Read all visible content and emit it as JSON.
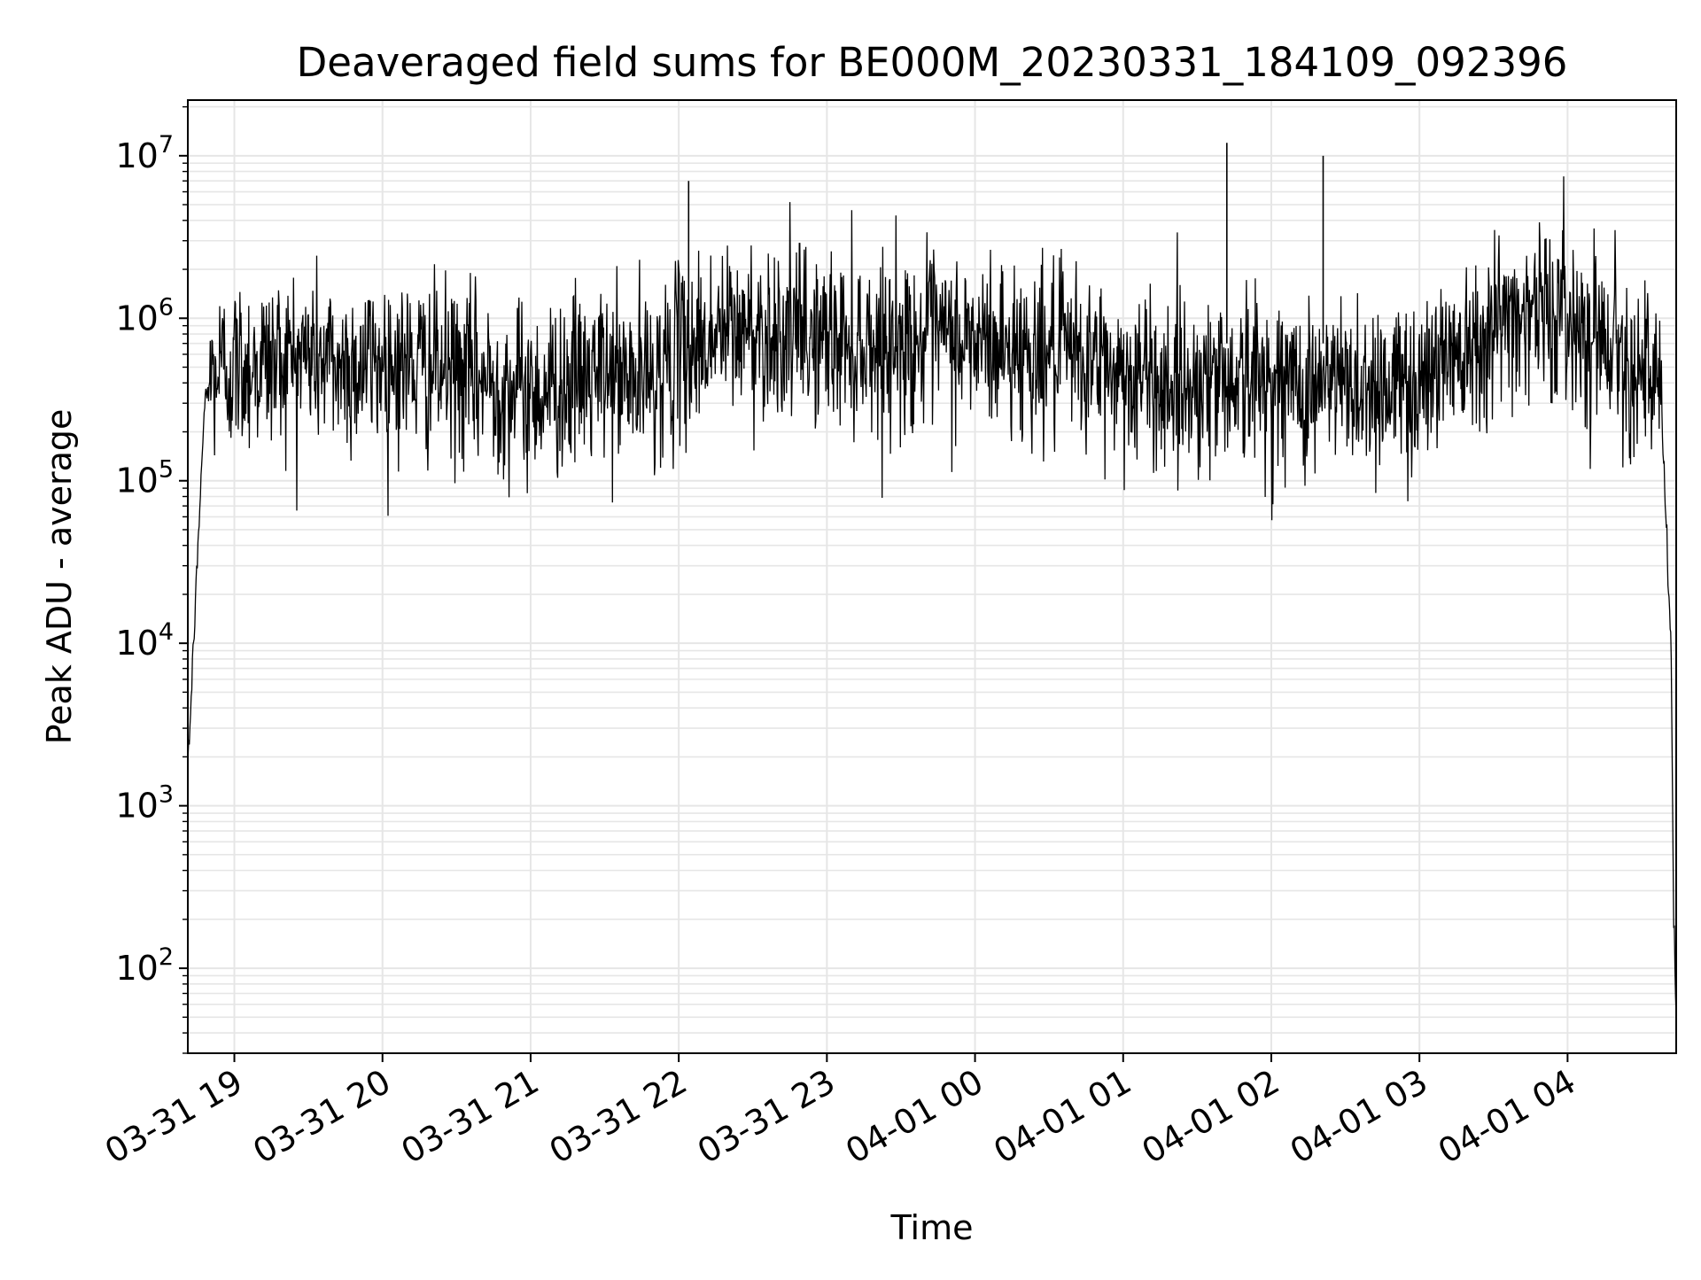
{
  "chart_data": {
    "type": "line",
    "title": "Deaveraged field sums for BE000M_20230331_184109_092396",
    "xlabel": "Time",
    "ylabel": "Peak ADU - average",
    "yscale": "log",
    "ylim": [
      30,
      22000000
    ],
    "xlim": [
      "2023-03-31 18:41:09",
      "2023-04-01 04:44:00"
    ],
    "grid": true,
    "grid_color": "#e6e6e6",
    "line_color": "#000000",
    "x_ticks": [
      {
        "value": "2023-03-31 19:00",
        "label": "03-31 19"
      },
      {
        "value": "2023-03-31 20:00",
        "label": "03-31 20"
      },
      {
        "value": "2023-03-31 21:00",
        "label": "03-31 21"
      },
      {
        "value": "2023-03-31 22:00",
        "label": "03-31 22"
      },
      {
        "value": "2023-03-31 23:00",
        "label": "03-31 23"
      },
      {
        "value": "2023-04-01 00:00",
        "label": "04-01 00"
      },
      {
        "value": "2023-04-01 01:00",
        "label": "04-01 01"
      },
      {
        "value": "2023-04-01 02:00",
        "label": "04-01 02"
      },
      {
        "value": "2023-04-01 03:00",
        "label": "04-01 03"
      },
      {
        "value": "2023-04-01 04:00",
        "label": "04-01 04"
      }
    ],
    "y_ticks": [
      {
        "value": 100,
        "base": "10",
        "exp": "2"
      },
      {
        "value": 1000,
        "base": "10",
        "exp": "3"
      },
      {
        "value": 10000,
        "base": "10",
        "exp": "4"
      },
      {
        "value": 100000,
        "base": "10",
        "exp": "5"
      },
      {
        "value": 1000000,
        "base": "10",
        "exp": "6"
      },
      {
        "value": 10000000,
        "base": "10",
        "exp": "7"
      }
    ],
    "series": [
      {
        "x": [
          "2023-03-31 18:41",
          "2023-03-31 18:42",
          "2023-03-31 18:43",
          "2023-03-31 18:44",
          "2023-03-31 18:45",
          "2023-03-31 18:46",
          "2023-03-31 18:47",
          "2023-03-31 18:48",
          "2023-03-31 18:50",
          "2023-03-31 18:52",
          "2023-03-31 18:55",
          "2023-03-31 19:00",
          "2023-03-31 19:15",
          "2023-03-31 19:30",
          "2023-03-31 19:45",
          "2023-03-31 20:00",
          "2023-03-31 20:15",
          "2023-03-31 20:30",
          "2023-03-31 20:45",
          "2023-03-31 21:00",
          "2023-03-31 21:15",
          "2023-03-31 21:30",
          "2023-03-31 21:45",
          "2023-03-31 22:00",
          "2023-03-31 22:15",
          "2023-03-31 22:30",
          "2023-03-31 22:45",
          "2023-03-31 23:00",
          "2023-03-31 23:15",
          "2023-03-31 23:30",
          "2023-03-31 23:45",
          "2023-04-01 00:00",
          "2023-04-01 00:15",
          "2023-04-01 00:30",
          "2023-04-01 00:45",
          "2023-04-01 01:00",
          "2023-04-01 01:15",
          "2023-04-01 01:30",
          "2023-04-01 01:45",
          "2023-04-01 02:00",
          "2023-04-01 02:15",
          "2023-04-01 02:30",
          "2023-04-01 02:45",
          "2023-04-01 03:00",
          "2023-04-01 03:15",
          "2023-04-01 03:30",
          "2023-04-01 03:45",
          "2023-04-01 04:00",
          "2023-04-01 04:15",
          "2023-04-01 04:30",
          "2023-04-01 04:38",
          "2023-04-01 04:40",
          "2023-04-01 04:42",
          "2023-04-01 04:43",
          "2023-04-01 04:44"
        ],
        "y": [
          2000,
          3000,
          7000,
          15000,
          30000,
          70000,
          150000,
          300000,
          400000,
          450000,
          500000,
          500000,
          550000,
          600000,
          500000,
          550000,
          500000,
          450000,
          400000,
          350000,
          400000,
          450000,
          400000,
          600000,
          800000,
          850000,
          800000,
          750000,
          700000,
          700000,
          750000,
          700000,
          650000,
          600000,
          550000,
          450000,
          400000,
          400000,
          450000,
          400000,
          380000,
          400000,
          380000,
          400000,
          700000,
          900000,
          1200000,
          1000000,
          800000,
          500000,
          300000,
          50000,
          8000,
          200,
          50
        ]
      }
    ],
    "spikes": [
      {
        "x": "2023-03-31 22:04",
        "y": 7000000
      },
      {
        "x": "2023-04-01 01:42",
        "y": 12000000
      },
      {
        "x": "2023-04-01 02:21",
        "y": 10000000
      }
    ]
  }
}
